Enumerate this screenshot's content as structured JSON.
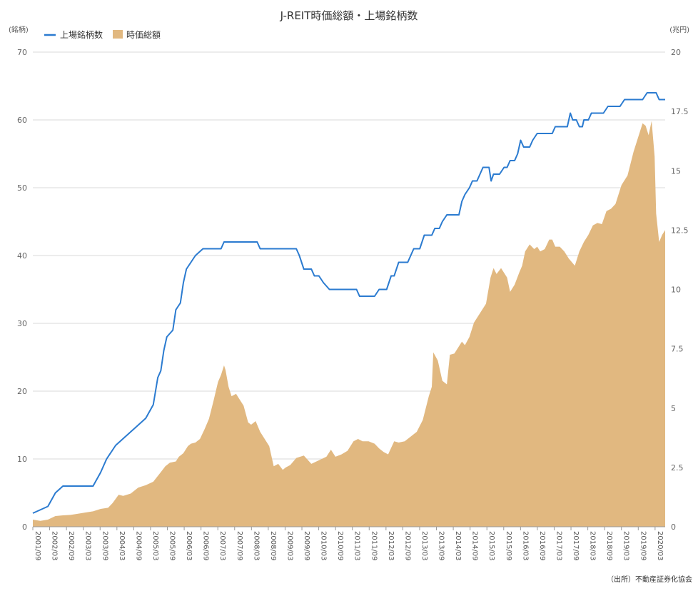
{
  "chart_data": {
    "type": "line+area",
    "title": "J-REIT時価総額・上場銘柄数",
    "y_left_unit": "(銘柄)",
    "y_right_unit": "(兆円)",
    "y_left_range": [
      0,
      70
    ],
    "y_left_ticks": [
      "0",
      "10",
      "20",
      "30",
      "40",
      "50",
      "60",
      "70"
    ],
    "y_right_range": [
      0,
      20
    ],
    "y_right_ticks": [
      "0",
      "2.5",
      "5",
      "7.5",
      "10",
      "12.5",
      "15",
      "17.5",
      "20"
    ],
    "x_tick_labels": [
      "2001/09",
      "2002/03",
      "2002/09",
      "2003/03",
      "2003/09",
      "2004/03",
      "2004/09",
      "2005/03",
      "2005/09",
      "2006/03",
      "2006/09",
      "2007/03",
      "2007/09",
      "2008/03",
      "2008/09",
      "2009/03",
      "2009/09",
      "2010/03",
      "2010/09",
      "2011/03",
      "2011/09",
      "2012/03",
      "2012/09",
      "2013/03",
      "2013/09",
      "2014/03",
      "2014/09",
      "2015/03",
      "2015/09",
      "2016/03",
      "2016/09",
      "2017/03",
      "2017/09",
      "2018/03",
      "2018/09",
      "2019/03",
      "2019/09",
      "2020/03"
    ],
    "grid": true,
    "legend_position": "top-left",
    "source": "（出所）不動産証券化協会",
    "series": [
      {
        "name": "上場銘柄数",
        "axis": "left",
        "kind": "line",
        "color": "#2b7bd0",
        "points": [
          [
            2001.75,
            2
          ],
          [
            2002.25,
            3
          ],
          [
            2002.5,
            5
          ],
          [
            2002.75,
            6
          ],
          [
            2003.0,
            6
          ],
          [
            2003.5,
            6
          ],
          [
            2003.75,
            6
          ],
          [
            2004.0,
            8
          ],
          [
            2004.2,
            10
          ],
          [
            2004.5,
            12
          ],
          [
            2004.75,
            13
          ],
          [
            2005.0,
            14
          ],
          [
            2005.25,
            15
          ],
          [
            2005.5,
            16
          ],
          [
            2005.75,
            18
          ],
          [
            2005.9,
            22
          ],
          [
            2006.0,
            23
          ],
          [
            2006.1,
            26
          ],
          [
            2006.2,
            28
          ],
          [
            2006.4,
            29
          ],
          [
            2006.5,
            32
          ],
          [
            2006.65,
            33
          ],
          [
            2006.75,
            36
          ],
          [
            2006.85,
            38
          ],
          [
            2007.0,
            39
          ],
          [
            2007.15,
            40
          ],
          [
            2007.4,
            41
          ],
          [
            2008.0,
            41
          ],
          [
            2008.1,
            42
          ],
          [
            2009.2,
            42
          ],
          [
            2009.3,
            41
          ],
          [
            2010.5,
            41
          ],
          [
            2010.6,
            40
          ],
          [
            2010.75,
            38
          ],
          [
            2011.0,
            38
          ],
          [
            2011.1,
            37
          ],
          [
            2011.25,
            37
          ],
          [
            2011.4,
            36
          ],
          [
            2011.6,
            35
          ],
          [
            2012.5,
            35
          ],
          [
            2012.6,
            34
          ],
          [
            2013.1,
            34
          ],
          [
            2013.25,
            35
          ],
          [
            2013.5,
            35
          ],
          [
            2013.65,
            37
          ],
          [
            2013.75,
            37
          ],
          [
            2013.9,
            39
          ],
          [
            2014.2,
            39
          ],
          [
            2014.4,
            41
          ],
          [
            2014.6,
            41
          ],
          [
            2014.75,
            43
          ],
          [
            2015.0,
            43
          ],
          [
            2015.1,
            44
          ],
          [
            2015.25,
            44
          ],
          [
            2015.35,
            45
          ],
          [
            2015.5,
            46
          ],
          [
            2015.9,
            46
          ],
          [
            2016.0,
            48
          ],
          [
            2016.1,
            49
          ],
          [
            2016.25,
            50
          ],
          [
            2016.35,
            51
          ],
          [
            2016.5,
            51
          ],
          [
            2016.7,
            53
          ],
          [
            2016.9,
            53
          ],
          [
            2016.97,
            51
          ],
          [
            2017.05,
            52
          ],
          [
            2017.25,
            52
          ],
          [
            2017.4,
            53
          ],
          [
            2017.5,
            53
          ],
          [
            2017.6,
            54
          ],
          [
            2017.75,
            54
          ],
          [
            2017.85,
            55
          ],
          [
            2017.95,
            57
          ],
          [
            2018.05,
            56
          ],
          [
            2018.25,
            56
          ],
          [
            2018.35,
            57
          ],
          [
            2018.5,
            58
          ],
          [
            2019.0,
            58
          ],
          [
            2019.1,
            59
          ],
          [
            2019.5,
            59
          ],
          [
            2019.6,
            61
          ],
          [
            2019.68,
            60
          ],
          [
            2019.8,
            60
          ],
          [
            2019.9,
            59
          ],
          [
            2020.0,
            59
          ],
          [
            2020.05,
            60
          ],
          [
            2020.2,
            60
          ],
          [
            2020.3,
            61
          ],
          [
            2020.7,
            61
          ],
          [
            2020.85,
            62
          ],
          [
            2021.25,
            62
          ],
          [
            2021.4,
            63
          ],
          [
            2022.0,
            63
          ],
          [
            2022.15,
            64
          ],
          [
            2022.45,
            64
          ],
          [
            2022.55,
            63
          ],
          [
            2022.75,
            63
          ]
        ]
      },
      {
        "name": "時価総額",
        "axis": "right",
        "kind": "area",
        "color": "#e1b880",
        "points": [
          [
            2001.75,
            0.3
          ],
          [
            2002.0,
            0.25
          ],
          [
            2002.25,
            0.3
          ],
          [
            2002.5,
            0.45
          ],
          [
            2002.75,
            0.48
          ],
          [
            2003.0,
            0.5
          ],
          [
            2003.25,
            0.55
          ],
          [
            2003.5,
            0.6
          ],
          [
            2003.75,
            0.65
          ],
          [
            2004.0,
            0.75
          ],
          [
            2004.25,
            0.8
          ],
          [
            2004.4,
            1.0
          ],
          [
            2004.6,
            1.35
          ],
          [
            2004.75,
            1.3
          ],
          [
            2005.0,
            1.4
          ],
          [
            2005.25,
            1.65
          ],
          [
            2005.5,
            1.75
          ],
          [
            2005.75,
            1.9
          ],
          [
            2006.0,
            2.3
          ],
          [
            2006.15,
            2.55
          ],
          [
            2006.3,
            2.7
          ],
          [
            2006.5,
            2.75
          ],
          [
            2006.6,
            2.95
          ],
          [
            2006.75,
            3.1
          ],
          [
            2006.9,
            3.4
          ],
          [
            2007.0,
            3.5
          ],
          [
            2007.15,
            3.55
          ],
          [
            2007.3,
            3.7
          ],
          [
            2007.45,
            4.1
          ],
          [
            2007.6,
            4.55
          ],
          [
            2007.75,
            5.3
          ],
          [
            2007.9,
            6.1
          ],
          [
            2008.0,
            6.4
          ],
          [
            2008.1,
            6.8
          ],
          [
            2008.15,
            6.6
          ],
          [
            2008.25,
            5.9
          ],
          [
            2008.35,
            5.5
          ],
          [
            2008.5,
            5.6
          ],
          [
            2008.6,
            5.4
          ],
          [
            2008.75,
            5.1
          ],
          [
            2008.9,
            4.4
          ],
          [
            2009.0,
            4.3
          ],
          [
            2009.15,
            4.45
          ],
          [
            2009.3,
            4.0
          ],
          [
            2009.45,
            3.7
          ],
          [
            2009.6,
            3.4
          ],
          [
            2009.75,
            2.55
          ],
          [
            2009.9,
            2.65
          ],
          [
            2010.05,
            2.4
          ],
          [
            2010.15,
            2.5
          ],
          [
            2010.3,
            2.6
          ],
          [
            2010.5,
            2.9
          ],
          [
            2010.75,
            3.0
          ],
          [
            2011.0,
            2.65
          ],
          [
            2011.25,
            2.8
          ],
          [
            2011.5,
            2.95
          ],
          [
            2011.65,
            3.25
          ],
          [
            2011.8,
            2.95
          ],
          [
            2012.0,
            3.05
          ],
          [
            2012.2,
            3.2
          ],
          [
            2012.4,
            3.6
          ],
          [
            2012.55,
            3.7
          ],
          [
            2012.7,
            3.6
          ],
          [
            2012.9,
            3.6
          ],
          [
            2013.1,
            3.5
          ],
          [
            2013.25,
            3.3
          ],
          [
            2013.4,
            3.15
          ],
          [
            2013.55,
            3.05
          ],
          [
            2013.75,
            3.6
          ],
          [
            2013.9,
            3.55
          ],
          [
            2014.1,
            3.6
          ],
          [
            2014.3,
            3.8
          ],
          [
            2014.5,
            4.0
          ],
          [
            2014.7,
            4.5
          ],
          [
            2014.9,
            5.5
          ],
          [
            2015.0,
            5.9
          ],
          [
            2015.05,
            7.35
          ],
          [
            2015.2,
            7.0
          ],
          [
            2015.35,
            6.15
          ],
          [
            2015.5,
            6.0
          ],
          [
            2015.6,
            7.25
          ],
          [
            2015.75,
            7.3
          ],
          [
            2015.9,
            7.6
          ],
          [
            2016.0,
            7.8
          ],
          [
            2016.1,
            7.65
          ],
          [
            2016.25,
            8.0
          ],
          [
            2016.4,
            8.6
          ],
          [
            2016.6,
            9.0
          ],
          [
            2016.8,
            9.4
          ],
          [
            2016.95,
            10.5
          ],
          [
            2017.05,
            10.9
          ],
          [
            2017.15,
            10.65
          ],
          [
            2017.3,
            10.9
          ],
          [
            2017.5,
            10.5
          ],
          [
            2017.6,
            9.9
          ],
          [
            2017.75,
            10.2
          ],
          [
            2017.9,
            10.7
          ],
          [
            2018.0,
            11.0
          ],
          [
            2018.1,
            11.6
          ],
          [
            2018.25,
            11.9
          ],
          [
            2018.4,
            11.7
          ],
          [
            2018.5,
            11.8
          ],
          [
            2018.6,
            11.6
          ],
          [
            2018.75,
            11.7
          ],
          [
            2018.9,
            12.1
          ],
          [
            2019.0,
            12.1
          ],
          [
            2019.1,
            11.8
          ],
          [
            2019.25,
            11.8
          ],
          [
            2019.4,
            11.6
          ],
          [
            2019.55,
            11.3
          ],
          [
            2019.75,
            11.0
          ],
          [
            2019.9,
            11.6
          ],
          [
            2020.05,
            12.0
          ],
          [
            2020.2,
            12.3
          ],
          [
            2020.35,
            12.7
          ],
          [
            2020.5,
            12.8
          ],
          [
            2020.65,
            12.75
          ],
          [
            2020.8,
            13.3
          ],
          [
            2020.95,
            13.4
          ],
          [
            2021.1,
            13.6
          ],
          [
            2021.3,
            14.4
          ],
          [
            2021.5,
            14.8
          ],
          [
            2021.7,
            15.8
          ],
          [
            2021.9,
            16.6
          ],
          [
            2022.0,
            17.0
          ],
          [
            2022.1,
            16.9
          ],
          [
            2022.2,
            16.5
          ],
          [
            2022.3,
            17.1
          ],
          [
            2022.4,
            15.6
          ],
          [
            2022.45,
            13.2
          ],
          [
            2022.55,
            12.0
          ],
          [
            2022.65,
            12.3
          ],
          [
            2022.75,
            12.5
          ]
        ]
      }
    ]
  }
}
